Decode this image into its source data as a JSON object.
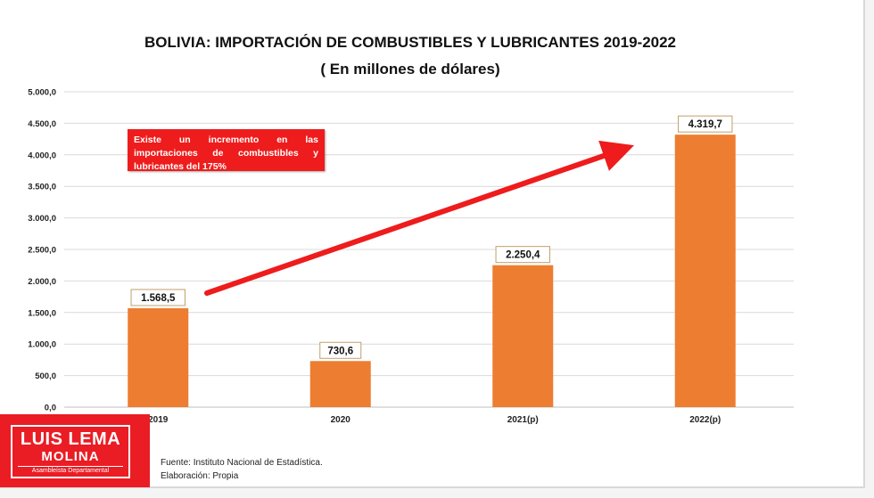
{
  "chart_data": {
    "type": "bar",
    "title": "BOLIVIA: IMPORTACIÓN DE COMBUSTIBLES Y LUBRICANTES 2019-2022",
    "subtitle": "( En millones de dólares)",
    "categories": [
      "2019",
      "2020",
      "2021(p)",
      "2022(p)"
    ],
    "values": [
      1568.5,
      730.6,
      2250.4,
      4319.7
    ],
    "value_labels": [
      "1.568,5",
      "730,6",
      "2.250,4",
      "4.319,7"
    ],
    "y_ticks": [
      0,
      500,
      1000,
      1500,
      2000,
      2500,
      3000,
      3500,
      4000,
      4500,
      5000
    ],
    "y_tick_labels": [
      "0,0",
      "500,0",
      "1.000,0",
      "1.500,0",
      "2.000,0",
      "2.500,0",
      "3.000,0",
      "3.500,0",
      "4.000,0",
      "4.500,0",
      "5.000,0"
    ],
    "ylim": [
      0,
      5000
    ],
    "xlabel": "",
    "ylabel": "",
    "grid": true,
    "bar_color": "#ed7d31",
    "trend_arrow_color": "#ee1c1c",
    "annotation": "Existe un incremento en las importaciones de combustibles y lubricantes del 175%"
  },
  "branding": {
    "name": "LUIS LEMA",
    "surname": "MOLINA",
    "role": "Asambleísta Departamental",
    "color": "#ea1c24"
  },
  "footer": {
    "source": "Fuente: Instituto Nacional de Estadística.",
    "elaboration": "Elaboración: Propia"
  }
}
